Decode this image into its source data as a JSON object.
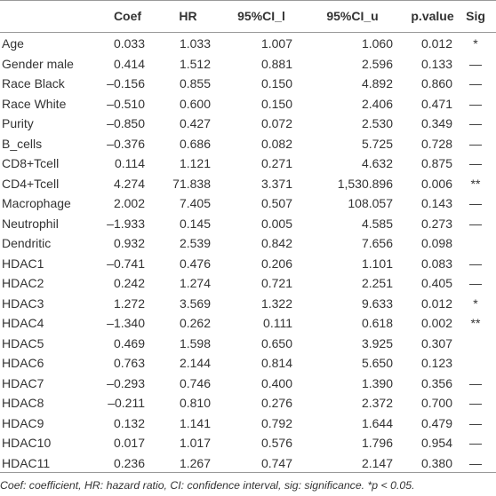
{
  "table": {
    "header": [
      null,
      "Coef",
      "HR",
      "95%CI_l",
      "95%CI_u",
      "p.value",
      "Sig"
    ],
    "rows": [
      [
        "Age",
        "0.033",
        "1.033",
        "1.007",
        "1.060",
        "0.012",
        "*"
      ],
      [
        "Gender male",
        "0.414",
        "1.512",
        "0.881",
        "2.596",
        "0.133",
        "—"
      ],
      [
        "Race Black",
        "–0.156",
        "0.855",
        "0.150",
        "4.892",
        "0.860",
        "—"
      ],
      [
        "Race White",
        "–0.510",
        "0.600",
        "0.150",
        "2.406",
        "0.471",
        "—"
      ],
      [
        "Purity",
        "–0.850",
        "0.427",
        "0.072",
        "2.530",
        "0.349",
        "—"
      ],
      [
        "B_cells",
        "–0.376",
        "0.686",
        "0.082",
        "5.725",
        "0.728",
        "—"
      ],
      [
        "CD8+Tcell",
        "0.114",
        "1.121",
        "0.271",
        "4.632",
        "0.875",
        "—"
      ],
      [
        "CD4+Tcell",
        "4.274",
        "71.838",
        "3.371",
        "1,530.896",
        "0.006",
        "**"
      ],
      [
        "Macrophage",
        "2.002",
        "7.405",
        "0.507",
        "108.057",
        "0.143",
        "—"
      ],
      [
        "Neutrophil",
        "–1.933",
        "0.145",
        "0.005",
        "4.585",
        "0.273",
        "—"
      ],
      [
        "Dendritic",
        "0.932",
        "2.539",
        "0.842",
        "7.656",
        "0.098",
        null
      ],
      [
        "HDAC1",
        "–0.741",
        "0.476",
        "0.206",
        "1.101",
        "0.083",
        "—"
      ],
      [
        "HDAC2",
        "0.242",
        "1.274",
        "0.721",
        "2.251",
        "0.405",
        "—"
      ],
      [
        "HDAC3",
        "1.272",
        "3.569",
        "1.322",
        "9.633",
        "0.012",
        "*"
      ],
      [
        "HDAC4",
        "–1.340",
        "0.262",
        "0.111",
        "0.618",
        "0.002",
        "**"
      ],
      [
        "HDAC5",
        "0.469",
        "1.598",
        "0.650",
        "3.925",
        "0.307",
        null
      ],
      [
        "HDAC6",
        "0.763",
        "2.144",
        "0.814",
        "5.650",
        "0.123",
        null
      ],
      [
        "HDAC7",
        "–0.293",
        "0.746",
        "0.400",
        "1.390",
        "0.356",
        "—"
      ],
      [
        "HDAC8",
        "–0.211",
        "0.810",
        "0.276",
        "2.372",
        "0.700",
        "—"
      ],
      [
        "HDAC9",
        "0.132",
        "1.141",
        "0.792",
        "1.644",
        "0.479",
        "—"
      ],
      [
        "HDAC10",
        "0.017",
        "1.017",
        "0.576",
        "1.796",
        "0.954",
        "—"
      ],
      [
        "HDAC11",
        "0.236",
        "1.267",
        "0.747",
        "2.147",
        "0.380",
        "—"
      ]
    ],
    "footnote": "Coef: coefficient, HR: hazard ratio, CI: confidence interval, sig: significance. *p < 0.05."
  }
}
